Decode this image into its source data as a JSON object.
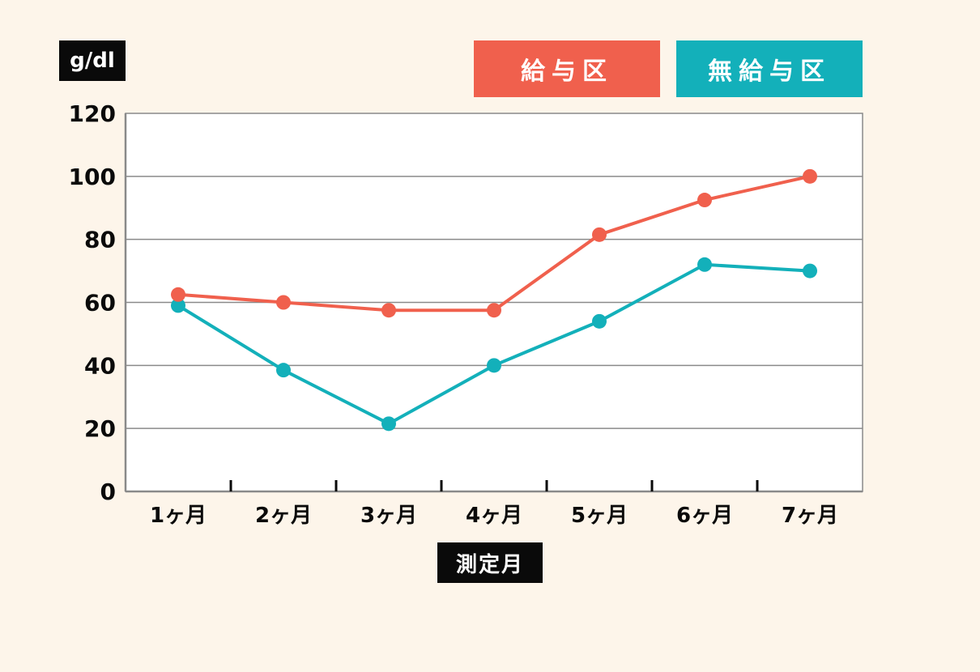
{
  "colors": {
    "background": "#fdf5ea",
    "series_fed": "#f0604d",
    "series_unfed": "#13b0ba",
    "grid": "#8a8a8a",
    "badge": "#0a0a0a"
  },
  "chart_data": {
    "type": "line",
    "ylabel": "g/dl",
    "xlabel": "測定月",
    "categories": [
      "1ヶ月",
      "2ヶ月",
      "3ヶ月",
      "4ヶ月",
      "5ヶ月",
      "6ヶ月",
      "7ヶ月"
    ],
    "ylim": [
      0,
      120
    ],
    "yticks": [
      "0",
      "20",
      "40",
      "60",
      "80",
      "100",
      "120"
    ],
    "grid": true,
    "legend_placement": "top-right",
    "series": [
      {
        "name": "給与区",
        "values": [
          62.5,
          60,
          57.5,
          57.5,
          81.5,
          92.5,
          100
        ]
      },
      {
        "name": "無給与区",
        "values": [
          59,
          38.5,
          21.5,
          40,
          54,
          72,
          70
        ]
      }
    ]
  }
}
